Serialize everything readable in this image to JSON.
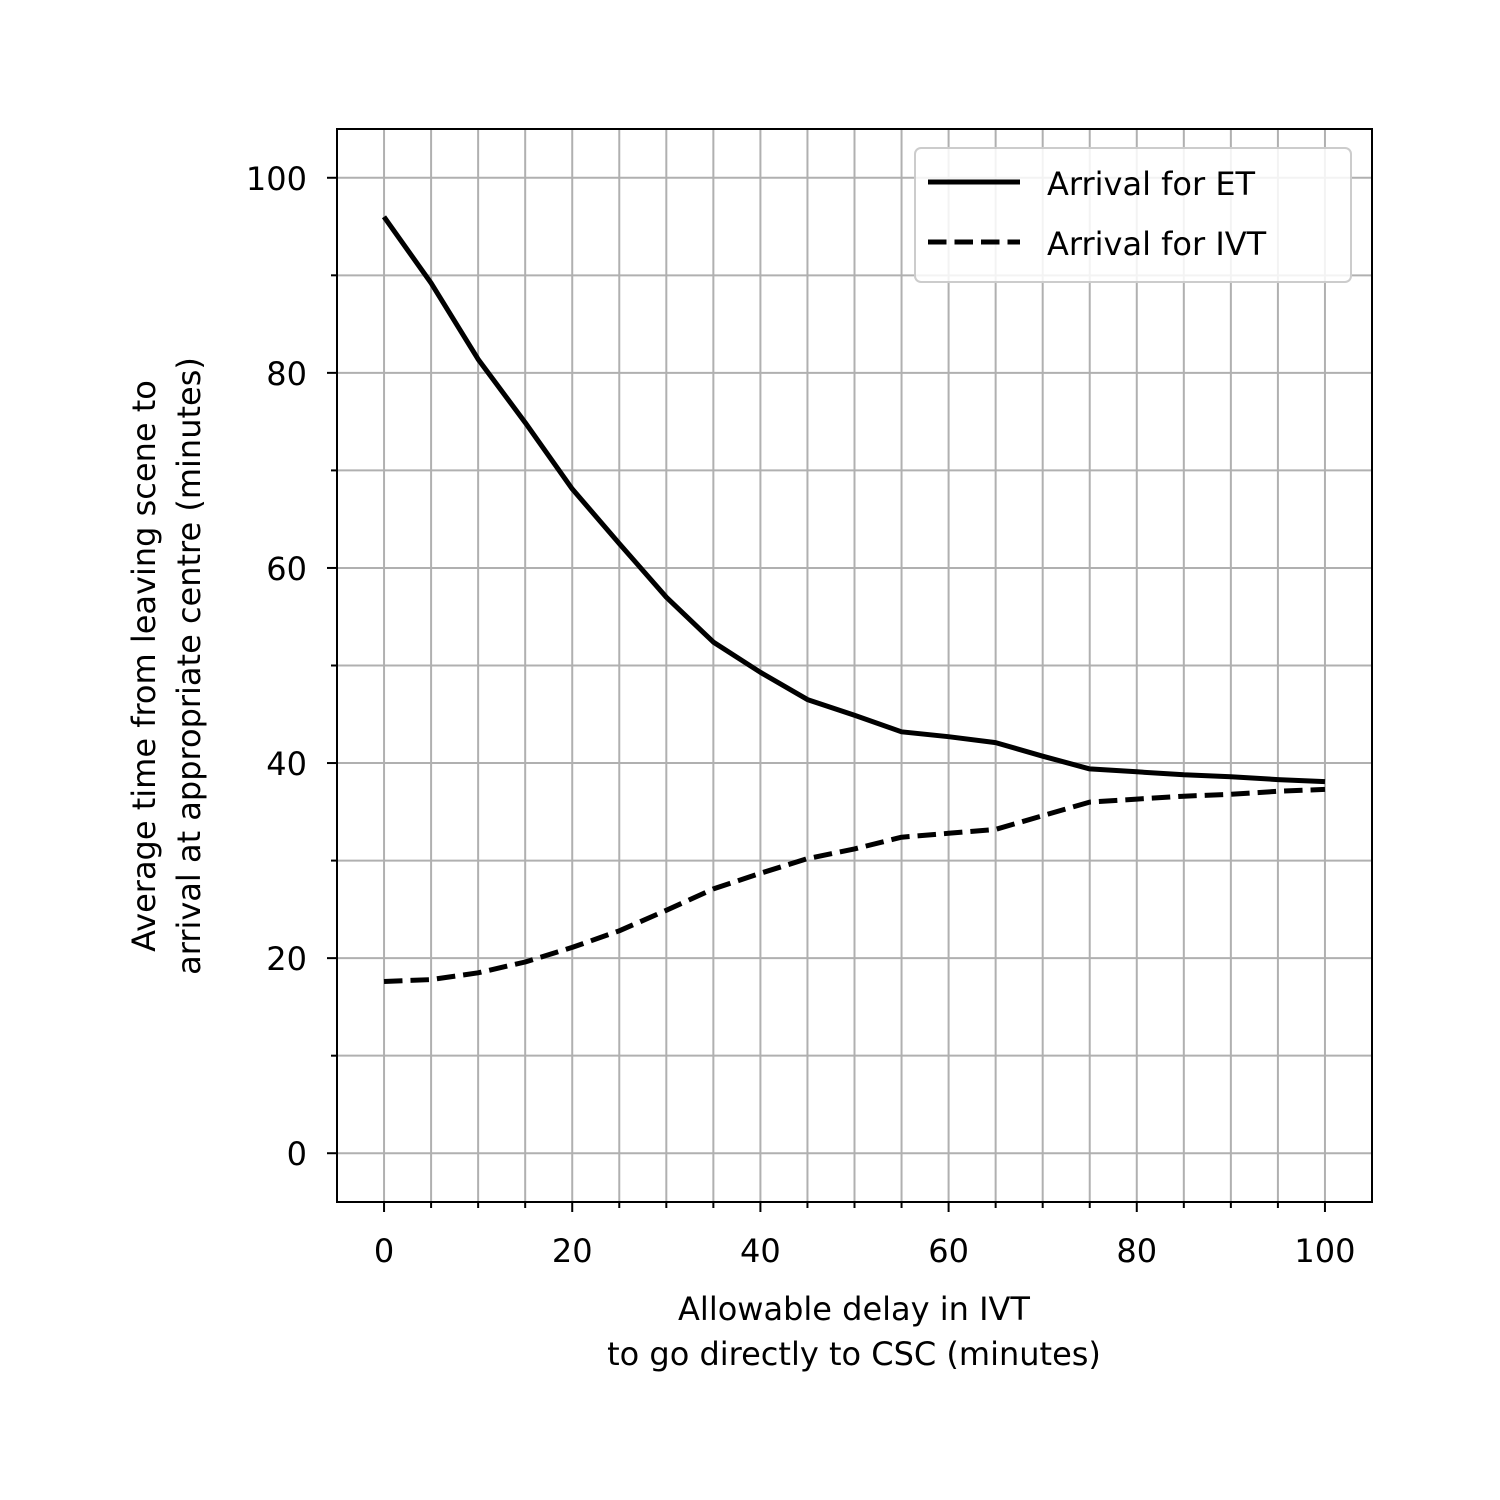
{
  "chart_data": {
    "type": "line",
    "xlabel": [
      "Allowable delay in IVT",
      "to go directly to CSC (minutes)"
    ],
    "ylabel": [
      "Average time from leaving scene to",
      "arrival at appropriate centre (minutes)"
    ],
    "xlim": [
      -5,
      105
    ],
    "ylim": [
      -5,
      105
    ],
    "x_ticks": [
      0,
      20,
      40,
      60,
      80,
      100
    ],
    "y_ticks": [
      0,
      20,
      40,
      60,
      80,
      100
    ],
    "x_minor_step": 5,
    "y_minor_step": 10,
    "grid": "major and minor",
    "legend_position": "top-right",
    "x": [
      0,
      5,
      10,
      15,
      20,
      25,
      30,
      35,
      40,
      45,
      50,
      55,
      60,
      65,
      70,
      75,
      80,
      85,
      90,
      95,
      100
    ],
    "series": [
      {
        "name": "Arrival for ET",
        "style": "solid",
        "color": "#000000",
        "values": [
          96.0,
          89.2,
          81.4,
          74.9,
          68.1,
          62.5,
          57.0,
          52.4,
          49.3,
          46.5,
          44.9,
          43.2,
          42.7,
          42.1,
          40.7,
          39.4,
          39.1,
          38.8,
          38.6,
          38.3,
          38.1
        ]
      },
      {
        "name": "Arrival for IVT",
        "style": "dashed",
        "color": "#000000",
        "values": [
          17.6,
          17.8,
          18.5,
          19.6,
          21.1,
          22.8,
          24.9,
          27.1,
          28.7,
          30.2,
          31.2,
          32.4,
          32.8,
          33.2,
          34.6,
          36.0,
          36.3,
          36.6,
          36.8,
          37.1,
          37.3
        ]
      }
    ]
  }
}
